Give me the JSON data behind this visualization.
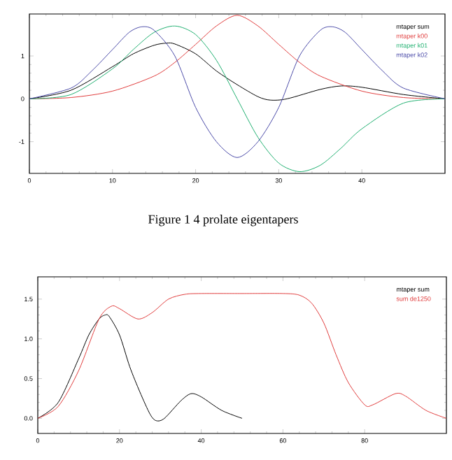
{
  "chart_data": [
    {
      "type": "line",
      "xlim": [
        0,
        50
      ],
      "ylim": [
        -1.74,
        1.98
      ],
      "xticks": [
        0,
        10,
        20,
        30,
        40
      ],
      "yticks": [
        -1,
        0,
        1
      ],
      "legend": "top right",
      "annotations": [
        "Figure 1 4   prolate eigentapers"
      ],
      "series": [
        {
          "name": "mtaper sum",
          "color": "#000000",
          "x": [
            0,
            5,
            10,
            12.5,
            15,
            16.5,
            17.5,
            20,
            22.5,
            25,
            27.5,
            29,
            31,
            35,
            37.5,
            40,
            45,
            50
          ],
          "values": [
            0,
            0.2,
            0.75,
            1.05,
            1.25,
            1.3,
            1.28,
            1.05,
            0.65,
            0.33,
            0.05,
            -0.03,
            0.0,
            0.22,
            0.3,
            0.27,
            0.1,
            0
          ]
        },
        {
          "name": "mtaper k00",
          "color": "#e03c3c",
          "x": [
            0,
            5,
            10,
            15,
            17.5,
            20,
            22.5,
            25,
            27.5,
            30,
            32.5,
            35,
            40,
            45,
            50
          ],
          "values": [
            0,
            0.03,
            0.18,
            0.53,
            0.85,
            1.27,
            1.7,
            1.95,
            1.7,
            1.27,
            0.85,
            0.53,
            0.18,
            0.03,
            0
          ]
        },
        {
          "name": "mtaper k01",
          "color": "#20b070",
          "x": [
            0,
            5,
            10,
            12.5,
            15,
            17.5,
            20,
            22.5,
            25,
            27.5,
            30,
            32.5,
            35,
            37.5,
            40,
            45,
            50
          ],
          "values": [
            0,
            0.1,
            0.7,
            1.15,
            1.55,
            1.7,
            1.5,
            0.9,
            0,
            -0.9,
            -1.5,
            -1.7,
            -1.55,
            -1.15,
            -0.7,
            -0.1,
            0
          ]
        },
        {
          "name": "mtaper k02",
          "color": "#4a4aa8",
          "x": [
            0,
            5,
            7.5,
            10,
            12,
            13.5,
            15,
            17.5,
            20,
            22.5,
            25,
            27.5,
            30,
            32.5,
            35,
            36.5,
            38,
            40,
            42.5,
            45,
            50
          ],
          "values": [
            0,
            0.25,
            0.65,
            1.15,
            1.55,
            1.68,
            1.6,
            1.0,
            -0.2,
            -1.0,
            -1.37,
            -1.0,
            -0.2,
            1.0,
            1.6,
            1.68,
            1.55,
            1.15,
            0.65,
            0.25,
            0
          ]
        }
      ]
    },
    {
      "type": "line",
      "xlim": [
        0,
        100
      ],
      "ylim": [
        -0.19,
        1.78
      ],
      "xticks": [
        0,
        20,
        40,
        60,
        80
      ],
      "yticks": [
        {
          "value": 0,
          "label": "0.0"
        },
        0.5,
        {
          "value": 1,
          "label": "1.0"
        },
        1.5
      ],
      "legend": "top right",
      "series": [
        {
          "name": "mtaper sum",
          "color": "#000000",
          "x": [
            0,
            5,
            10,
            12.5,
            15,
            16.5,
            17.5,
            20,
            22.5,
            25,
            27.5,
            29,
            31,
            35,
            37.5,
            40,
            45,
            50
          ],
          "values": [
            0,
            0.2,
            0.75,
            1.05,
            1.25,
            1.3,
            1.28,
            1.05,
            0.65,
            0.33,
            0.05,
            -0.03,
            0.0,
            0.22,
            0.31,
            0.27,
            0.1,
            0
          ]
        },
        {
          "name": "sum de1250",
          "color": "#e03c3c",
          "x": [
            0,
            5,
            10,
            15,
            18,
            20,
            24.5,
            28,
            32,
            36,
            40,
            50,
            60,
            64,
            67,
            70,
            73,
            76,
            80,
            82,
            87.5,
            90,
            95,
            100
          ],
          "values": [
            0,
            0.15,
            0.6,
            1.25,
            1.41,
            1.38,
            1.25,
            1.33,
            1.5,
            1.56,
            1.57,
            1.57,
            1.57,
            1.55,
            1.45,
            1.2,
            0.8,
            0.45,
            0.17,
            0.17,
            0.31,
            0.28,
            0.1,
            0
          ]
        }
      ]
    }
  ]
}
